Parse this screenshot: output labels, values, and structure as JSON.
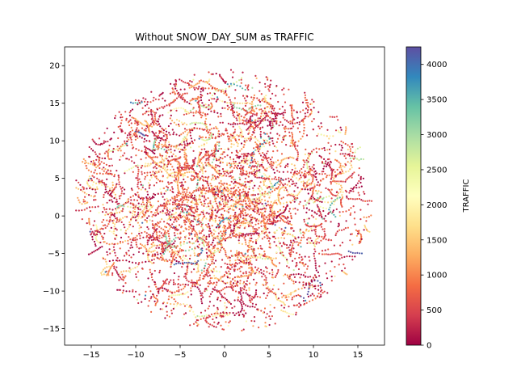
{
  "chart_data": {
    "type": "scatter",
    "title": "Without SNOW_DAY_SUM as TRAFFIC",
    "xlabel": "",
    "ylabel": "",
    "xlim": [
      -18,
      18
    ],
    "ylim": [
      -17.2,
      22.5
    ],
    "x_ticks": [
      -15,
      -10,
      -5,
      0,
      5,
      10,
      15
    ],
    "y_ticks": [
      -15,
      -10,
      -5,
      0,
      5,
      10,
      15,
      20
    ],
    "grid": false,
    "colorbar": {
      "label": "TRAFFIC",
      "colormap": "Spectral",
      "range": [
        0,
        4250
      ],
      "ticks": [
        0,
        500,
        1000,
        1500,
        2000,
        2500,
        3000,
        3500,
        4000
      ]
    },
    "point_cloud": {
      "approx_count": 6000,
      "shape": "roughly circular blob centered near (0, 2) with radius about 16",
      "dominant_traffic": "mostly below 1500, scattered higher values up to about 4000"
    }
  }
}
